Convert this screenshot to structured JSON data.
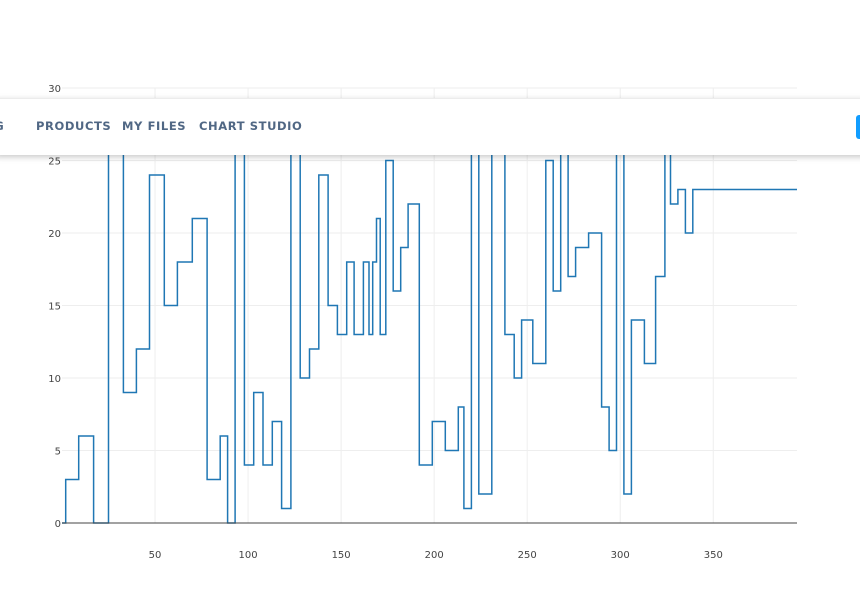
{
  "nav": {
    "items": [
      {
        "name": "nav-link-partial",
        "label": "NG"
      },
      {
        "name": "nav-link-products",
        "label": "PRODUCTS"
      },
      {
        "name": "nav-link-my-files",
        "label": "MY FILES"
      },
      {
        "name": "nav-link-chart-studio",
        "label": "CHART STUDIO"
      }
    ]
  },
  "chart_data": {
    "type": "line",
    "line_shape": "step",
    "xlim": [
      0,
      395
    ],
    "ylim": [
      0,
      30
    ],
    "x_ticks": [
      50,
      100,
      150,
      200,
      250,
      300,
      350
    ],
    "y_ticks": [
      0,
      5,
      10,
      15,
      20,
      25,
      30
    ],
    "grid": true,
    "color": "#1f77b4",
    "series": [
      {
        "x": [
          0,
          2,
          9,
          17,
          25,
          33,
          40,
          47,
          55,
          62,
          70,
          78,
          85,
          89,
          93,
          98,
          103,
          108,
          113,
          118,
          123,
          128,
          133,
          138,
          143,
          148,
          153,
          157,
          162,
          165,
          167,
          169,
          171,
          174,
          178,
          182,
          186,
          192,
          199,
          206,
          213,
          216,
          220,
          224,
          231,
          238,
          243,
          247,
          253,
          260,
          264,
          268,
          272,
          276,
          283,
          290,
          294,
          298,
          302,
          306,
          313,
          319,
          324,
          327,
          331,
          335,
          339,
          343,
          347,
          351,
          355,
          359,
          363,
          367,
          371,
          376,
          380,
          385,
          391,
          395
        ],
        "y": [
          0,
          3,
          6,
          0,
          27,
          9,
          12,
          24,
          15,
          18,
          21,
          3,
          6,
          0,
          27,
          4,
          9,
          4,
          7,
          1,
          27,
          10,
          12,
          24,
          15,
          13,
          18,
          13,
          18,
          13,
          18,
          21,
          13,
          25,
          16,
          19,
          22,
          4,
          7,
          5,
          8,
          1,
          27,
          2,
          27,
          13,
          10,
          14,
          11,
          25,
          16,
          27,
          17,
          19,
          20,
          8,
          5,
          27,
          2,
          14,
          11,
          17,
          27,
          22,
          23,
          20,
          23,
          23,
          23,
          23,
          23,
          23,
          23,
          23,
          23,
          23,
          23,
          23,
          23,
          23
        ]
      }
    ]
  }
}
